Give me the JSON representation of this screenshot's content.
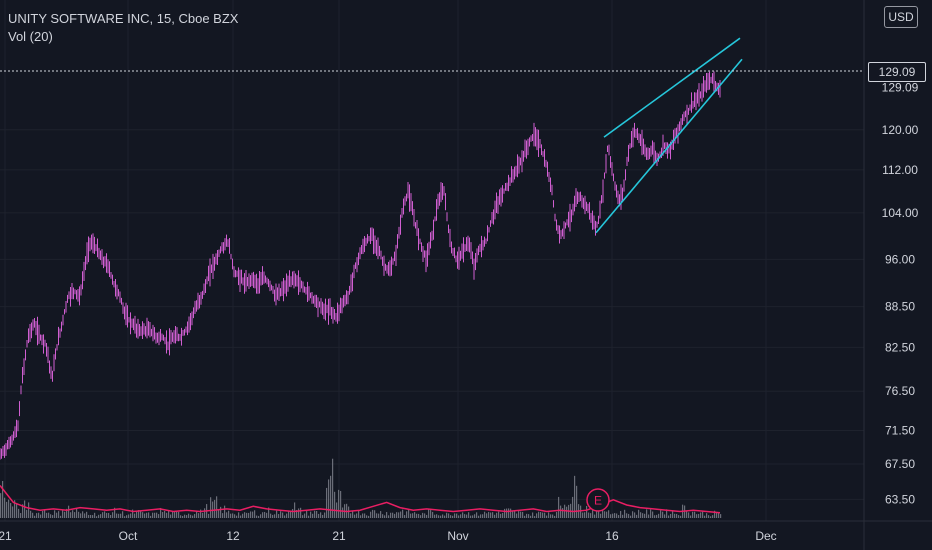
{
  "legend": {
    "symbol": "UNITY SOFTWARE INC, 15, Cboe BZX",
    "volume": "Vol (20)"
  },
  "currency": "USD",
  "last_price": "129.09",
  "earnings_marker": "E",
  "colors": {
    "background": "#131722",
    "candles": "#d05fd1",
    "trendlines": "#26c6da",
    "volume_bars": "#7a7d87",
    "volume_ma": "#e91e63",
    "axis_text": "#d1d4dc"
  },
  "chart_data": {
    "type": "line",
    "y_scale": "log",
    "ylim": [
      61.5,
      148
    ],
    "y_ticks": [
      "63.50",
      "67.50",
      "71.50",
      "76.50",
      "82.50",
      "88.50",
      "96.00",
      "104.00",
      "112.00",
      "120.00",
      "129.09"
    ],
    "x_ticks": [
      "21",
      "Oct",
      "12",
      "21",
      "Nov",
      "16",
      "Dec"
    ],
    "price_series": {
      "name": "",
      "points": [
        [
          0,
          68.5
        ],
        [
          10,
          70
        ],
        [
          14,
          71
        ],
        [
          18,
          72
        ],
        [
          22,
          78
        ],
        [
          28,
          84
        ],
        [
          34,
          86
        ],
        [
          40,
          84
        ],
        [
          46,
          83
        ],
        [
          52,
          78
        ],
        [
          56,
          82
        ],
        [
          62,
          86
        ],
        [
          68,
          90
        ],
        [
          74,
          91
        ],
        [
          80,
          90
        ],
        [
          86,
          96
        ],
        [
          90,
          99
        ],
        [
          96,
          98
        ],
        [
          102,
          96
        ],
        [
          108,
          95
        ],
        [
          114,
          92
        ],
        [
          120,
          90
        ],
        [
          126,
          87
        ],
        [
          132,
          86
        ],
        [
          138,
          85
        ],
        [
          144,
          85
        ],
        [
          150,
          85
        ],
        [
          156,
          84
        ],
        [
          162,
          84
        ],
        [
          168,
          83
        ],
        [
          174,
          84
        ],
        [
          180,
          84
        ],
        [
          186,
          85
        ],
        [
          192,
          87
        ],
        [
          198,
          89
        ],
        [
          204,
          91
        ],
        [
          210,
          94
        ],
        [
          216,
          96
        ],
        [
          222,
          98
        ],
        [
          228,
          99
        ],
        [
          234,
          94
        ],
        [
          240,
          93
        ],
        [
          246,
          92
        ],
        [
          252,
          93
        ],
        [
          258,
          92
        ],
        [
          264,
          93
        ],
        [
          270,
          92
        ],
        [
          276,
          90
        ],
        [
          282,
          91
        ],
        [
          288,
          92
        ],
        [
          294,
          93
        ],
        [
          300,
          92
        ],
        [
          306,
          91
        ],
        [
          312,
          90
        ],
        [
          318,
          89
        ],
        [
          324,
          88
        ],
        [
          330,
          88
        ],
        [
          336,
          87
        ],
        [
          342,
          89
        ],
        [
          348,
          90
        ],
        [
          354,
          94
        ],
        [
          360,
          97
        ],
        [
          366,
          99
        ],
        [
          372,
          100
        ],
        [
          378,
          98
        ],
        [
          384,
          95
        ],
        [
          390,
          94
        ],
        [
          396,
          97
        ],
        [
          402,
          104
        ],
        [
          408,
          108
        ],
        [
          414,
          103
        ],
        [
          420,
          99
        ],
        [
          426,
          96
        ],
        [
          432,
          100
        ],
        [
          438,
          106
        ],
        [
          444,
          108
        ],
        [
          450,
          99
        ],
        [
          456,
          96
        ],
        [
          462,
          97
        ],
        [
          468,
          99
        ],
        [
          474,
          95
        ],
        [
          480,
          98
        ],
        [
          486,
          99
        ],
        [
          492,
          103
        ],
        [
          498,
          106
        ],
        [
          504,
          108
        ],
        [
          510,
          110
        ],
        [
          516,
          112
        ],
        [
          522,
          114
        ],
        [
          528,
          117
        ],
        [
          534,
          119
        ],
        [
          540,
          117
        ],
        [
          546,
          113
        ],
        [
          552,
          108
        ],
        [
          556,
          102
        ],
        [
          560,
          100
        ],
        [
          566,
          102
        ],
        [
          572,
          104
        ],
        [
          578,
          107
        ],
        [
          584,
          106
        ],
        [
          590,
          104
        ],
        [
          596,
          101
        ],
        [
          600,
          104
        ],
        [
          604,
          110
        ],
        [
          608,
          117
        ],
        [
          612,
          112
        ],
        [
          616,
          108
        ],
        [
          620,
          106
        ],
        [
          624,
          109
        ],
        [
          628,
          115
        ],
        [
          634,
          120
        ],
        [
          640,
          118
        ],
        [
          646,
          115
        ],
        [
          652,
          116
        ],
        [
          658,
          114
        ],
        [
          664,
          117
        ],
        [
          670,
          116
        ],
        [
          676,
          119
        ],
        [
          682,
          122
        ],
        [
          688,
          124
        ],
        [
          694,
          126
        ],
        [
          700,
          127
        ],
        [
          706,
          130
        ],
        [
          712,
          131
        ],
        [
          718,
          129
        ],
        [
          720,
          129.09
        ]
      ]
    },
    "trendlines": [
      {
        "from": [
          604,
          118.5
        ],
        "to": [
          740,
          140.5
        ]
      },
      {
        "from": [
          596,
          100.5
        ],
        "to": [
          742,
          135.5
        ]
      }
    ],
    "volume_series": {
      "name": "Vol (20)",
      "bars_relative": [
        0.6,
        0.3,
        0.2,
        0.25,
        0.1,
        0.15,
        0.12,
        0.1,
        0.2,
        0.15,
        0.1,
        0.12,
        0.08,
        0.1,
        0.14,
        0.1,
        0.08,
        0.12,
        0.1,
        0.08,
        0.15,
        0.12,
        0.1,
        0.08,
        0.1,
        0.12,
        0.2,
        0.3,
        0.18,
        0.12,
        0.1,
        0.08,
        0.12,
        0.1,
        0.15,
        0.12,
        0.1,
        0.25,
        0.15,
        0.1,
        0.12,
        0.1,
        0.9,
        0.4,
        0.2,
        0.15,
        0.12,
        0.1,
        0.14,
        0.12,
        0.1,
        0.15,
        0.12,
        0.1,
        0.08,
        0.12,
        0.1,
        0.08,
        0.1,
        0.12,
        0.1,
        0.08,
        0.1,
        0.12,
        0.1,
        0.15,
        0.12,
        0.1,
        0.08,
        0.1,
        0.12,
        0.1,
        0.3,
        0.45,
        0.6,
        0.2,
        0.15,
        0.12,
        0.18,
        0.1,
        0.12,
        0.1,
        0.14,
        0.12,
        0.1,
        0.15,
        0.12,
        0.1,
        0.2,
        0.12,
        0.1,
        0.08,
        0.1
      ],
      "ma_relative": [
        0.25,
        0.12,
        0.08,
        0.06,
        0.07,
        0.06,
        0.08,
        0.07,
        0.06,
        0.07,
        0.05,
        0.06,
        0.07,
        0.05,
        0.06,
        0.05,
        0.06,
        0.07,
        0.06,
        0.09,
        0.07,
        0.06,
        0.05,
        0.06,
        0.07,
        0.06,
        0.05,
        0.06,
        0.09,
        0.12,
        0.08,
        0.06,
        0.07,
        0.06,
        0.05,
        0.06,
        0.07,
        0.06,
        0.05,
        0.06,
        0.07,
        0.05,
        0.06,
        0.05,
        0.06,
        0.1,
        0.14,
        0.1,
        0.08,
        0.07,
        0.06,
        0.05,
        0.06,
        0.05,
        0.04
      ]
    }
  }
}
